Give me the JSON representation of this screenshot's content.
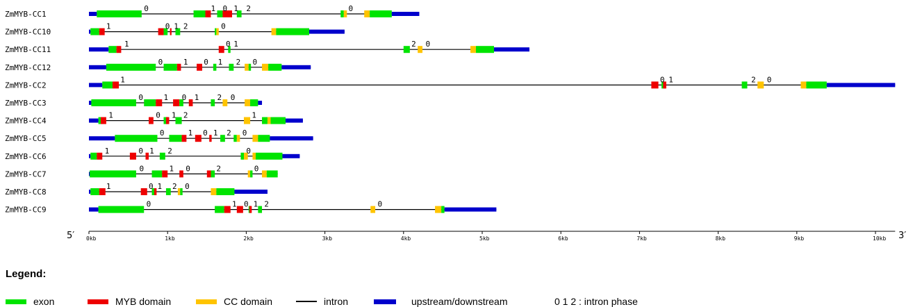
{
  "colors": {
    "exon": "#00e400",
    "myb": "#ee0000",
    "cc": "#ffc400",
    "intron": "#000000",
    "utr": "#0000cc",
    "text": "#000000"
  },
  "axis": {
    "start_label": "5′",
    "end_label": "3′",
    "ticks": [
      "0kb",
      "1kb",
      "2kb",
      "3kb",
      "4kb",
      "5kb",
      "6kb",
      "7kb",
      "8kb",
      "9kb",
      "10kb"
    ]
  },
  "genes": [
    {
      "name": "ZmMYB-CC1",
      "start": 0,
      "end": 4.2,
      "segments": [
        [
          "u",
          0,
          0.1
        ],
        [
          "e",
          0.1,
          0.67
        ],
        [
          "e",
          1.33,
          1.48
        ],
        [
          "m",
          1.48,
          1.55
        ],
        [
          "e",
          1.63,
          1.7
        ],
        [
          "m",
          1.7,
          1.8
        ],
        [
          "m",
          1.78,
          1.82
        ],
        [
          "e",
          1.88,
          1.94
        ],
        [
          "e",
          3.2,
          3.24
        ],
        [
          "c",
          3.24,
          3.28
        ],
        [
          "c",
          3.5,
          3.57
        ],
        [
          "e",
          3.57,
          3.85
        ],
        [
          "u",
          3.85,
          4.2
        ]
      ],
      "phases": [
        [
          0.7,
          "0"
        ],
        [
          1.55,
          "1"
        ],
        [
          1.7,
          "0"
        ],
        [
          1.84,
          "1"
        ],
        [
          2.0,
          "2"
        ],
        [
          3.3,
          "0"
        ]
      ]
    },
    {
      "name": "ZmMYB-CC10",
      "start": 0,
      "end": 3.25,
      "segments": [
        [
          "u",
          0,
          0.02
        ],
        [
          "e",
          0.02,
          0.13
        ],
        [
          "m",
          0.13,
          0.2
        ],
        [
          "m",
          0.88,
          0.95
        ],
        [
          "e",
          0.95,
          1.0
        ],
        [
          "m",
          1.03,
          1.05
        ],
        [
          "e",
          1.1,
          1.16
        ],
        [
          "e",
          1.6,
          1.62
        ],
        [
          "c",
          1.62,
          1.65
        ],
        [
          "c",
          2.32,
          2.38
        ],
        [
          "e",
          2.38,
          2.8
        ],
        [
          "u",
          2.8,
          3.25
        ]
      ],
      "phases": [
        [
          0.22,
          "1"
        ],
        [
          0.97,
          "0"
        ],
        [
          1.08,
          "1"
        ],
        [
          1.2,
          "2"
        ],
        [
          1.68,
          "0"
        ]
      ]
    },
    {
      "name": "ZmMYB-CC11",
      "start": 0,
      "end": 5.6,
      "segments": [
        [
          "u",
          0,
          0.25
        ],
        [
          "e",
          0.25,
          0.35
        ],
        [
          "m",
          0.35,
          0.41
        ],
        [
          "m",
          1.65,
          1.72
        ],
        [
          "e",
          1.77,
          1.8
        ],
        [
          "e",
          4.0,
          4.08
        ],
        [
          "c",
          4.18,
          4.24
        ],
        [
          "c",
          4.85,
          4.92
        ],
        [
          "e",
          4.92,
          5.15
        ],
        [
          "u",
          5.15,
          5.6
        ]
      ],
      "phases": [
        [
          0.45,
          "1"
        ],
        [
          1.74,
          "0"
        ],
        [
          1.84,
          "1"
        ],
        [
          4.1,
          "2"
        ],
        [
          4.28,
          "0"
        ]
      ]
    },
    {
      "name": "ZmMYB-CC12",
      "start": 0,
      "end": 2.82,
      "segments": [
        [
          "u",
          0,
          0.22
        ],
        [
          "e",
          0.22,
          0.85
        ],
        [
          "e",
          0.95,
          1.12
        ],
        [
          "m",
          1.12,
          1.17
        ],
        [
          "m",
          1.37,
          1.44
        ],
        [
          "e",
          1.58,
          1.62
        ],
        [
          "e",
          1.78,
          1.84
        ],
        [
          "c",
          1.98,
          2.03
        ],
        [
          "e",
          2.03,
          2.06
        ],
        [
          "c",
          2.2,
          2.28
        ],
        [
          "e",
          2.28,
          2.45
        ],
        [
          "u",
          2.45,
          2.82
        ]
      ],
      "phases": [
        [
          0.88,
          "0"
        ],
        [
          1.2,
          "1"
        ],
        [
          1.46,
          "0"
        ],
        [
          1.64,
          "1"
        ],
        [
          1.87,
          "2"
        ],
        [
          2.08,
          "0"
        ]
      ]
    },
    {
      "name": "ZmMYB-CC2",
      "start": 0,
      "end": 10.25,
      "segments": [
        [
          "u",
          0,
          0.17
        ],
        [
          "e",
          0.17,
          0.3
        ],
        [
          "m",
          0.3,
          0.38
        ],
        [
          "m",
          7.15,
          7.24
        ],
        [
          "e",
          7.28,
          7.33
        ],
        [
          "m",
          7.3,
          7.34
        ],
        [
          "e",
          8.3,
          8.37
        ],
        [
          "c",
          8.5,
          8.58
        ],
        [
          "c",
          9.05,
          9.12
        ],
        [
          "e",
          9.12,
          9.38
        ],
        [
          "u",
          9.38,
          10.25
        ]
      ],
      "phases": [
        [
          0.4,
          "1"
        ],
        [
          7.26,
          "0"
        ],
        [
          7.37,
          "1"
        ],
        [
          8.42,
          "2"
        ],
        [
          8.62,
          "0"
        ]
      ]
    },
    {
      "name": "ZmMYB-CC3",
      "start": 0,
      "end": 2.2,
      "segments": [
        [
          "u",
          0,
          0.03
        ],
        [
          "e",
          0.03,
          0.6
        ],
        [
          "e",
          0.7,
          0.85
        ],
        [
          "m",
          0.85,
          0.93
        ],
        [
          "m",
          1.07,
          1.15
        ],
        [
          "e",
          1.15,
          1.2
        ],
        [
          "m",
          1.27,
          1.32
        ],
        [
          "e",
          1.55,
          1.6
        ],
        [
          "c",
          1.7,
          1.76
        ],
        [
          "c",
          1.98,
          2.05
        ],
        [
          "e",
          2.05,
          2.15
        ],
        [
          "u",
          2.15,
          2.2
        ]
      ],
      "phases": [
        [
          0.63,
          "0"
        ],
        [
          0.95,
          "1"
        ],
        [
          1.18,
          "0"
        ],
        [
          1.34,
          "1"
        ],
        [
          1.63,
          "2"
        ],
        [
          1.8,
          "0"
        ]
      ]
    },
    {
      "name": "ZmMYB-CC4",
      "start": 0,
      "end": 2.72,
      "segments": [
        [
          "u",
          0,
          0.12
        ],
        [
          "e",
          0.12,
          0.15
        ],
        [
          "m",
          0.15,
          0.22
        ],
        [
          "m",
          0.76,
          0.82
        ],
        [
          "e",
          0.95,
          1.0
        ],
        [
          "m",
          0.98,
          1.02
        ],
        [
          "e",
          1.1,
          1.18
        ],
        [
          "c",
          1.97,
          2.05
        ],
        [
          "e",
          2.2,
          2.27
        ],
        [
          "c",
          2.27,
          2.31
        ],
        [
          "e",
          2.31,
          2.5
        ],
        [
          "u",
          2.5,
          2.72
        ]
      ],
      "phases": [
        [
          0.25,
          "1"
        ],
        [
          0.85,
          "0"
        ],
        [
          1.05,
          "1"
        ],
        [
          1.2,
          "2"
        ],
        [
          2.07,
          "1"
        ]
      ]
    },
    {
      "name": "ZmMYB-CC5",
      "start": 0,
      "end": 2.85,
      "segments": [
        [
          "u",
          0,
          0.33
        ],
        [
          "e",
          0.33,
          0.87
        ],
        [
          "e",
          1.02,
          1.18
        ],
        [
          "m",
          1.18,
          1.24
        ],
        [
          "m",
          1.35,
          1.43
        ],
        [
          "m",
          1.53,
          1.56
        ],
        [
          "e",
          1.67,
          1.73
        ],
        [
          "e",
          1.84,
          1.88
        ],
        [
          "c",
          1.88,
          1.92
        ],
        [
          "c",
          2.08,
          2.15
        ],
        [
          "e",
          2.15,
          2.3
        ],
        [
          "u",
          2.3,
          2.85
        ]
      ],
      "phases": [
        [
          0.9,
          "0"
        ],
        [
          1.26,
          "1"
        ],
        [
          1.45,
          "0"
        ],
        [
          1.58,
          "1"
        ],
        [
          1.75,
          "2"
        ],
        [
          1.95,
          "0"
        ]
      ]
    },
    {
      "name": "ZmMYB-CC6",
      "start": 0,
      "end": 2.68,
      "segments": [
        [
          "u",
          0,
          0.02
        ],
        [
          "e",
          0.02,
          0.1
        ],
        [
          "m",
          0.1,
          0.17
        ],
        [
          "m",
          0.52,
          0.6
        ],
        [
          "m",
          0.72,
          0.76
        ],
        [
          "e",
          0.9,
          0.97
        ],
        [
          "e",
          1.93,
          1.97
        ],
        [
          "c",
          1.97,
          2.02
        ],
        [
          "c",
          2.08,
          2.12
        ],
        [
          "e",
          2.12,
          2.46
        ],
        [
          "u",
          2.46,
          2.68
        ]
      ],
      "phases": [
        [
          0.2,
          "1"
        ],
        [
          0.63,
          "0"
        ],
        [
          0.77,
          "1"
        ],
        [
          1.0,
          "2"
        ],
        [
          2.0,
          "0"
        ]
      ]
    },
    {
      "name": "ZmMYB-CC7",
      "start": 0,
      "end": 2.4,
      "segments": [
        [
          "u",
          0,
          0.01
        ],
        [
          "e",
          0.01,
          0.6
        ],
        [
          "e",
          0.8,
          0.93
        ],
        [
          "m",
          0.93,
          1.0
        ],
        [
          "m",
          1.15,
          1.2
        ],
        [
          "m",
          1.5,
          1.55
        ],
        [
          "e",
          1.55,
          1.6
        ],
        [
          "c",
          2.02,
          2.05
        ],
        [
          "e",
          2.05,
          2.08
        ],
        [
          "c",
          2.2,
          2.26
        ],
        [
          "e",
          2.26,
          2.4
        ]
      ],
      "phases": [
        [
          0.64,
          "0"
        ],
        [
          1.02,
          "1"
        ],
        [
          1.23,
          "0"
        ],
        [
          1.62,
          "2"
        ],
        [
          2.1,
          "0"
        ]
      ]
    },
    {
      "name": "ZmMYB-CC8",
      "start": 0,
      "end": 2.27,
      "segments": [
        [
          "u",
          0,
          0.02
        ],
        [
          "e",
          0.02,
          0.13
        ],
        [
          "m",
          0.13,
          0.21
        ],
        [
          "m",
          0.66,
          0.74
        ],
        [
          "e",
          0.8,
          0.84
        ],
        [
          "m",
          0.83,
          0.86
        ],
        [
          "e",
          0.98,
          1.04
        ],
        [
          "c",
          1.13,
          1.16
        ],
        [
          "e",
          1.16,
          1.19
        ],
        [
          "c",
          1.55,
          1.62
        ],
        [
          "e",
          1.62,
          1.85
        ],
        [
          "u",
          1.85,
          2.27
        ]
      ],
      "phases": [
        [
          0.22,
          "1"
        ],
        [
          0.76,
          "0"
        ],
        [
          0.87,
          "1"
        ],
        [
          1.06,
          "2"
        ],
        [
          1.22,
          "0"
        ]
      ]
    },
    {
      "name": "ZmMYB-CC9",
      "start": 0,
      "end": 5.18,
      "segments": [
        [
          "u",
          0,
          0.12
        ],
        [
          "e",
          0.12,
          0.7
        ],
        [
          "e",
          1.6,
          1.72
        ],
        [
          "m",
          1.72,
          1.8
        ],
        [
          "m",
          1.88,
          1.96
        ],
        [
          "e",
          2.03,
          2.06
        ],
        [
          "m",
          2.04,
          2.07
        ],
        [
          "e",
          2.15,
          2.2
        ],
        [
          "c",
          3.58,
          3.64
        ],
        [
          "c",
          4.4,
          4.48
        ],
        [
          "e",
          4.48,
          4.52
        ],
        [
          "u",
          4.52,
          5.18
        ]
      ],
      "phases": [
        [
          0.73,
          "0"
        ],
        [
          1.82,
          "1"
        ],
        [
          1.97,
          "0"
        ],
        [
          2.09,
          "1"
        ],
        [
          2.23,
          "2"
        ],
        [
          3.67,
          "0"
        ]
      ]
    }
  ],
  "legend": {
    "title": "Legend:",
    "items": [
      {
        "key": "exon",
        "label": "exon"
      },
      {
        "key": "myb",
        "label": "MYB domain"
      },
      {
        "key": "cc",
        "label": "CC domain"
      },
      {
        "key": "intron",
        "label": "intron"
      },
      {
        "key": "utr",
        "label": "upstream/downstream"
      }
    ],
    "phase_note": "0 1 2 : intron phase"
  }
}
